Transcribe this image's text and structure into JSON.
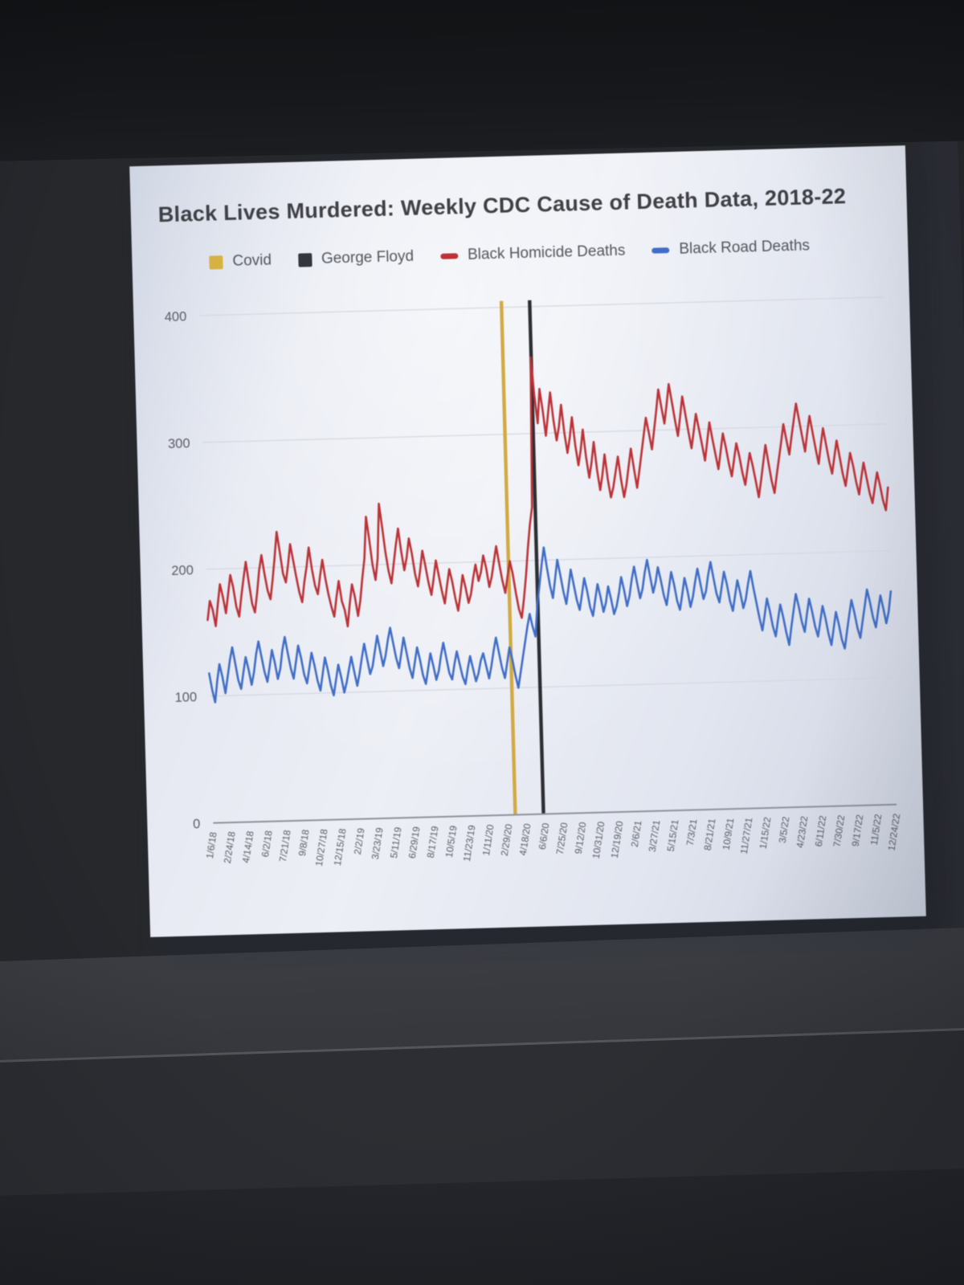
{
  "chart_data": {
    "type": "line",
    "title": "Black Lives Murdered: Weekly CDC Cause of Death Data, 2018-22",
    "grid": true,
    "legend_position": "top",
    "x_axis": {
      "unit": "week",
      "tick_step_weeks": 7,
      "tick_labels": [
        "1/6/18",
        "2/24/18",
        "4/14/18",
        "6/2/18",
        "7/21/18",
        "9/8/18",
        "10/27/18",
        "12/15/18",
        "2/2/19",
        "3/23/19",
        "5/11/19",
        "6/29/19",
        "8/17/19",
        "10/5/19",
        "11/23/19",
        "1/11/20",
        "2/29/20",
        "4/18/20",
        "6/6/20",
        "7/25/20",
        "9/12/20",
        "10/31/20",
        "12/19/20",
        "2/6/21",
        "3/27/21",
        "5/15/21",
        "7/3/21",
        "8/21/21",
        "10/9/21",
        "11/27/21",
        "1/15/22",
        "3/5/22",
        "4/23/22",
        "6/11/22",
        "7/30/22",
        "9/17/22",
        "11/5/22",
        "12/24/22"
      ]
    },
    "y_axis": {
      "ticks": [
        0,
        100,
        200,
        300,
        400
      ],
      "ylim": [
        0,
        400
      ]
    },
    "legend": [
      {
        "label": "Covid",
        "marker": "square",
        "color": "#d8b23e"
      },
      {
        "label": "George Floyd",
        "marker": "square",
        "color": "#33363c"
      },
      {
        "label": "Black Homicide Deaths",
        "marker": "dash",
        "color": "#bf3136"
      },
      {
        "label": "Black Road Deaths",
        "marker": "dash",
        "color": "#3e6dc9"
      }
    ],
    "event_lines": [
      {
        "name": "Covid",
        "color": "#d4a93f",
        "week_index": 114.5
      },
      {
        "name": "George Floyd",
        "color": "#2c2e33",
        "week_index": 125.2
      }
    ],
    "series": [
      {
        "name": "Black Homicide Deaths",
        "color": "#bf3136",
        "values": [
          160,
          175,
          168,
          155,
          172,
          188,
          178,
          165,
          180,
          195,
          185,
          170,
          162,
          178,
          192,
          205,
          188,
          172,
          165,
          180,
          198,
          210,
          195,
          182,
          175,
          190,
          208,
          228,
          212,
          195,
          188,
          202,
          218,
          205,
          192,
          180,
          172,
          188,
          200,
          215,
          198,
          185,
          178,
          192,
          205,
          190,
          178,
          168,
          160,
          175,
          188,
          172,
          165,
          152,
          170,
          185,
          175,
          160,
          172,
          190,
          205,
          238,
          220,
          200,
          188,
          205,
          248,
          230,
          210,
          195,
          185,
          200,
          215,
          228,
          210,
          195,
          205,
          220,
          208,
          192,
          182,
          195,
          210,
          198,
          185,
          175,
          188,
          202,
          190,
          178,
          168,
          182,
          195,
          185,
          172,
          162,
          175,
          190,
          180,
          168,
          175,
          188,
          198,
          185,
          192,
          205,
          195,
          180,
          188,
          200,
          212,
          198,
          185,
          175,
          188,
          200,
          190,
          175,
          162,
          155,
          170,
          188,
          210,
          228,
          242,
          360,
          330,
          308,
          335,
          318,
          298,
          315,
          332,
          310,
          294,
          305,
          322,
          300,
          284,
          296,
          312,
          290,
          274,
          286,
          302,
          280,
          264,
          276,
          292,
          270,
          254,
          266,
          282,
          262,
          248,
          256,
          268,
          280,
          262,
          248,
          258,
          272,
          286,
          270,
          255,
          268,
          282,
          296,
          310,
          298,
          285,
          300,
          315,
          332,
          318,
          305,
          320,
          336,
          322,
          308,
          295,
          310,
          326,
          312,
          298,
          285,
          298,
          312,
          300,
          288,
          275,
          290,
          305,
          292,
          280,
          268,
          282,
          296,
          285,
          272,
          262,
          275,
          288,
          278,
          265,
          255,
          268,
          280,
          270,
          258,
          245,
          258,
          272,
          286,
          272,
          258,
          248,
          262,
          275,
          288,
          302,
          290,
          278,
          292,
          305,
          318,
          305,
          292,
          280,
          295,
          308,
          295,
          282,
          270,
          285,
          298,
          285,
          272,
          262,
          275,
          288,
          275,
          262,
          252,
          265,
          278,
          268,
          255,
          245,
          258,
          270,
          258,
          246,
          238,
          250,
          262,
          252,
          240,
          232,
          250
        ]
      },
      {
        "name": "Black Road Deaths",
        "color": "#3e6dc9",
        "values": [
          118,
          105,
          95,
          112,
          125,
          115,
          102,
          115,
          128,
          138,
          125,
          112,
          105,
          118,
          130,
          120,
          108,
          118,
          132,
          142,
          130,
          118,
          110,
          122,
          135,
          125,
          112,
          120,
          135,
          145,
          132,
          120,
          112,
          125,
          138,
          128,
          115,
          108,
          120,
          132,
          122,
          110,
          102,
          115,
          128,
          118,
          106,
          98,
          110,
          122,
          112,
          100,
          108,
          118,
          128,
          116,
          105,
          115,
          127,
          138,
          126,
          114,
          120,
          132,
          144,
          132,
          120,
          128,
          140,
          150,
          138,
          126,
          118,
          130,
          142,
          130,
          118,
          110,
          122,
          134,
          124,
          112,
          105,
          117,
          129,
          119,
          108,
          115,
          127,
          137,
          125,
          113,
          108,
          120,
          130,
          120,
          110,
          104,
          116,
          126,
          116,
          106,
          112,
          122,
          128,
          118,
          108,
          118,
          130,
          140,
          128,
          116,
          108,
          120,
          132,
          122,
          110,
          100,
          112,
          124,
          136,
          148,
          158,
          148,
          140,
          165,
          180,
          196,
          210,
          194,
          180,
          170,
          185,
          200,
          188,
          175,
          165,
          178,
          192,
          180,
          168,
          160,
          172,
          185,
          175,
          162,
          155,
          168,
          180,
          170,
          158,
          165,
          178,
          168,
          156,
          162,
          172,
          185,
          175,
          162,
          170,
          183,
          193,
          180,
          168,
          175,
          188,
          198,
          185,
          172,
          180,
          192,
          182,
          170,
          162,
          175,
          188,
          178,
          165,
          158,
          170,
          183,
          173,
          160,
          168,
          180,
          190,
          178,
          166,
          172,
          185,
          195,
          182,
          170,
          163,
          175,
          187,
          177,
          164,
          156,
          168,
          180,
          170,
          158,
          165,
          177,
          187,
          174,
          162,
          150,
          140,
          152,
          165,
          155,
          143,
          135,
          148,
          160,
          150,
          138,
          128,
          142,
          155,
          168,
          158,
          146,
          138,
          152,
          164,
          154,
          142,
          134,
          146,
          158,
          148,
          136,
          127,
          140,
          153,
          143,
          131,
          124,
          137,
          150,
          162,
          152,
          140,
          132,
          145,
          157,
          170,
          160,
          148,
          140,
          153,
          165,
          155,
          143,
          152,
          168
        ]
      }
    ]
  }
}
